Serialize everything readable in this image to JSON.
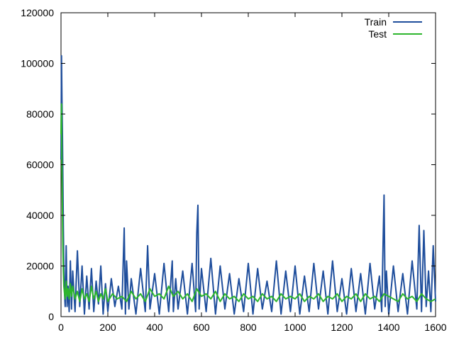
{
  "chart_data": {
    "type": "line",
    "title": "",
    "xlabel": "",
    "ylabel": "",
    "xlim": [
      0,
      1600
    ],
    "ylim": [
      0,
      120000
    ],
    "x_ticks": [
      0,
      200,
      400,
      600,
      800,
      1000,
      1200,
      1400,
      1600
    ],
    "y_ticks": [
      0,
      20000,
      40000,
      60000,
      80000,
      100000,
      120000
    ],
    "x_tick_labels": [
      "0",
      "200",
      "400",
      "600",
      "800",
      "1000",
      "1200",
      "1400",
      "1600"
    ],
    "y_tick_labels": [
      "0",
      "20000",
      "40000",
      "60000",
      "80000",
      "100000",
      "120000"
    ],
    "grid": false,
    "legend_position": "top-right",
    "series": [
      {
        "name": "Train",
        "color": "#1f4e9c",
        "x": [
          0,
          2,
          4,
          6,
          8,
          10,
          12,
          15,
          18,
          22,
          26,
          30,
          35,
          40,
          45,
          50,
          60,
          70,
          80,
          90,
          100,
          110,
          120,
          130,
          140,
          150,
          160,
          170,
          180,
          190,
          200,
          215,
          230,
          245,
          260,
          270,
          275,
          280,
          290,
          300,
          320,
          340,
          360,
          370,
          380,
          400,
          420,
          440,
          460,
          475,
          480,
          490,
          500,
          520,
          540,
          560,
          575,
          580,
          585,
          590,
          600,
          620,
          640,
          660,
          680,
          700,
          720,
          740,
          760,
          780,
          800,
          820,
          840,
          860,
          880,
          900,
          920,
          940,
          960,
          980,
          1000,
          1020,
          1040,
          1060,
          1080,
          1100,
          1120,
          1140,
          1160,
          1180,
          1200,
          1220,
          1240,
          1260,
          1280,
          1300,
          1320,
          1340,
          1360,
          1370,
          1380,
          1385,
          1390,
          1400,
          1420,
          1440,
          1460,
          1480,
          1500,
          1520,
          1530,
          1540,
          1550,
          1560,
          1570,
          1580,
          1590,
          1600
        ],
        "y": [
          62000,
          103000,
          86000,
          72000,
          55000,
          35000,
          20000,
          9000,
          4000,
          28000,
          4000,
          12000,
          2000,
          22000,
          3000,
          18000,
          2000,
          26000,
          4000,
          20000,
          1000,
          16000,
          3000,
          19000,
          2000,
          14000,
          5000,
          20000,
          1000,
          13000,
          2000,
          15000,
          4000,
          12000,
          3000,
          35000,
          1000,
          22000,
          3000,
          15000,
          1000,
          19000,
          2000,
          28000,
          3000,
          17000,
          1000,
          21000,
          2000,
          22000,
          2000,
          15000,
          3000,
          18000,
          1000,
          21000,
          2000,
          33000,
          44000,
          3000,
          19000,
          2000,
          23000,
          1000,
          20000,
          3000,
          17000,
          1000,
          15000,
          2000,
          21000,
          1000,
          19000,
          3000,
          14000,
          2000,
          22000,
          1000,
          18000,
          2000,
          20000,
          1000,
          16000,
          2000,
          21000,
          3000,
          18000,
          1000,
          22000,
          2000,
          15000,
          1000,
          19000,
          2000,
          17000,
          1000,
          21000,
          3000,
          16000,
          2000,
          48000,
          4000,
          18000,
          1000,
          20000,
          2000,
          17000,
          1000,
          22000,
          3000,
          36000,
          2000,
          34000,
          4000,
          18000,
          2000,
          28000,
          6000
        ],
        "values_note_ignored": null
      },
      {
        "name": "Test",
        "color": "#2db52d",
        "x": [
          0,
          2,
          4,
          6,
          8,
          10,
          12,
          15,
          18,
          22,
          26,
          30,
          35,
          40,
          45,
          50,
          60,
          70,
          80,
          90,
          100,
          110,
          120,
          130,
          140,
          150,
          160,
          170,
          180,
          190,
          200,
          220,
          240,
          260,
          280,
          300,
          320,
          340,
          360,
          380,
          400,
          420,
          440,
          460,
          480,
          500,
          520,
          540,
          560,
          580,
          600,
          620,
          640,
          660,
          680,
          700,
          720,
          740,
          760,
          780,
          800,
          820,
          840,
          860,
          880,
          900,
          920,
          940,
          960,
          980,
          1000,
          1020,
          1040,
          1060,
          1080,
          1100,
          1120,
          1140,
          1160,
          1180,
          1200,
          1220,
          1240,
          1260,
          1280,
          1300,
          1320,
          1340,
          1360,
          1380,
          1400,
          1420,
          1440,
          1460,
          1480,
          1500,
          1520,
          1540,
          1560,
          1580,
          1600
        ],
        "y": [
          72000,
          84000,
          60000,
          42000,
          28000,
          18000,
          12000,
          9000,
          7000,
          14000,
          8000,
          11000,
          7000,
          13000,
          8000,
          12000,
          7000,
          10000,
          6000,
          11000,
          7000,
          9000,
          6000,
          12000,
          7000,
          10000,
          6000,
          9000,
          7000,
          11000,
          6000,
          9000,
          7000,
          8000,
          6000,
          10000,
          7000,
          9000,
          6000,
          11000,
          8000,
          9000,
          7000,
          12000,
          8000,
          10000,
          7000,
          9000,
          6000,
          11000,
          8000,
          9000,
          7000,
          10000,
          6000,
          9000,
          7000,
          8000,
          6000,
          9000,
          7000,
          8000,
          6000,
          9000,
          7000,
          8000,
          6000,
          9000,
          7000,
          8000,
          7000,
          9000,
          6000,
          8000,
          7000,
          9000,
          6000,
          8000,
          7000,
          9000,
          6000,
          8000,
          7000,
          9000,
          6000,
          9000,
          7000,
          8000,
          6000,
          9000,
          8000,
          7000,
          6000,
          9000,
          7000,
          8000,
          6000,
          9000,
          7000,
          6000,
          7000
        ]
      }
    ]
  }
}
